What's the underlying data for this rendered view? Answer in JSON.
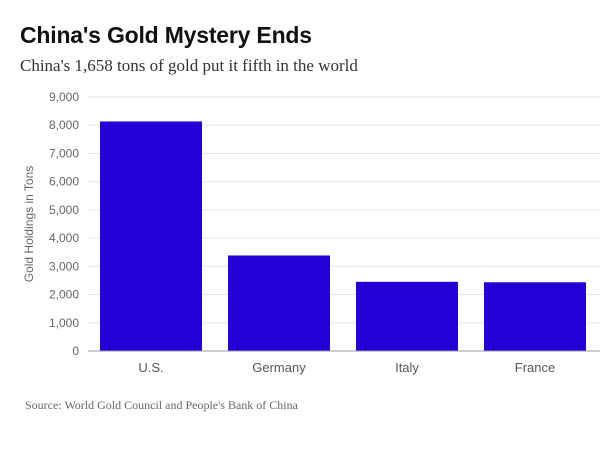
{
  "chart_data": {
    "type": "bar",
    "title": "China's Gold Mystery Ends",
    "subtitle": "China's 1,658 tons of gold put it fifth in the world",
    "categories": [
      "U.S.",
      "Germany",
      "Italy",
      "France"
    ],
    "values": [
      8133,
      3384,
      2451,
      2435
    ],
    "xlabel": "",
    "ylabel": "Gold Holdings in Tons",
    "ylim": [
      0,
      9000
    ],
    "yticks": [
      0,
      1000,
      2000,
      3000,
      4000,
      5000,
      6000,
      7000,
      8000,
      9000
    ],
    "ytick_labels": [
      "0",
      "1,000",
      "2,000",
      "3,000",
      "4,000",
      "5,000",
      "6,000",
      "7,000",
      "8,000",
      "9,000"
    ],
    "grid": true,
    "legend": "none",
    "source": "Source: World Gold Council and People's Bank of China",
    "colors": {
      "bar": "#2400d6",
      "grid": "#e6e6e6",
      "axis": "#999999"
    }
  }
}
